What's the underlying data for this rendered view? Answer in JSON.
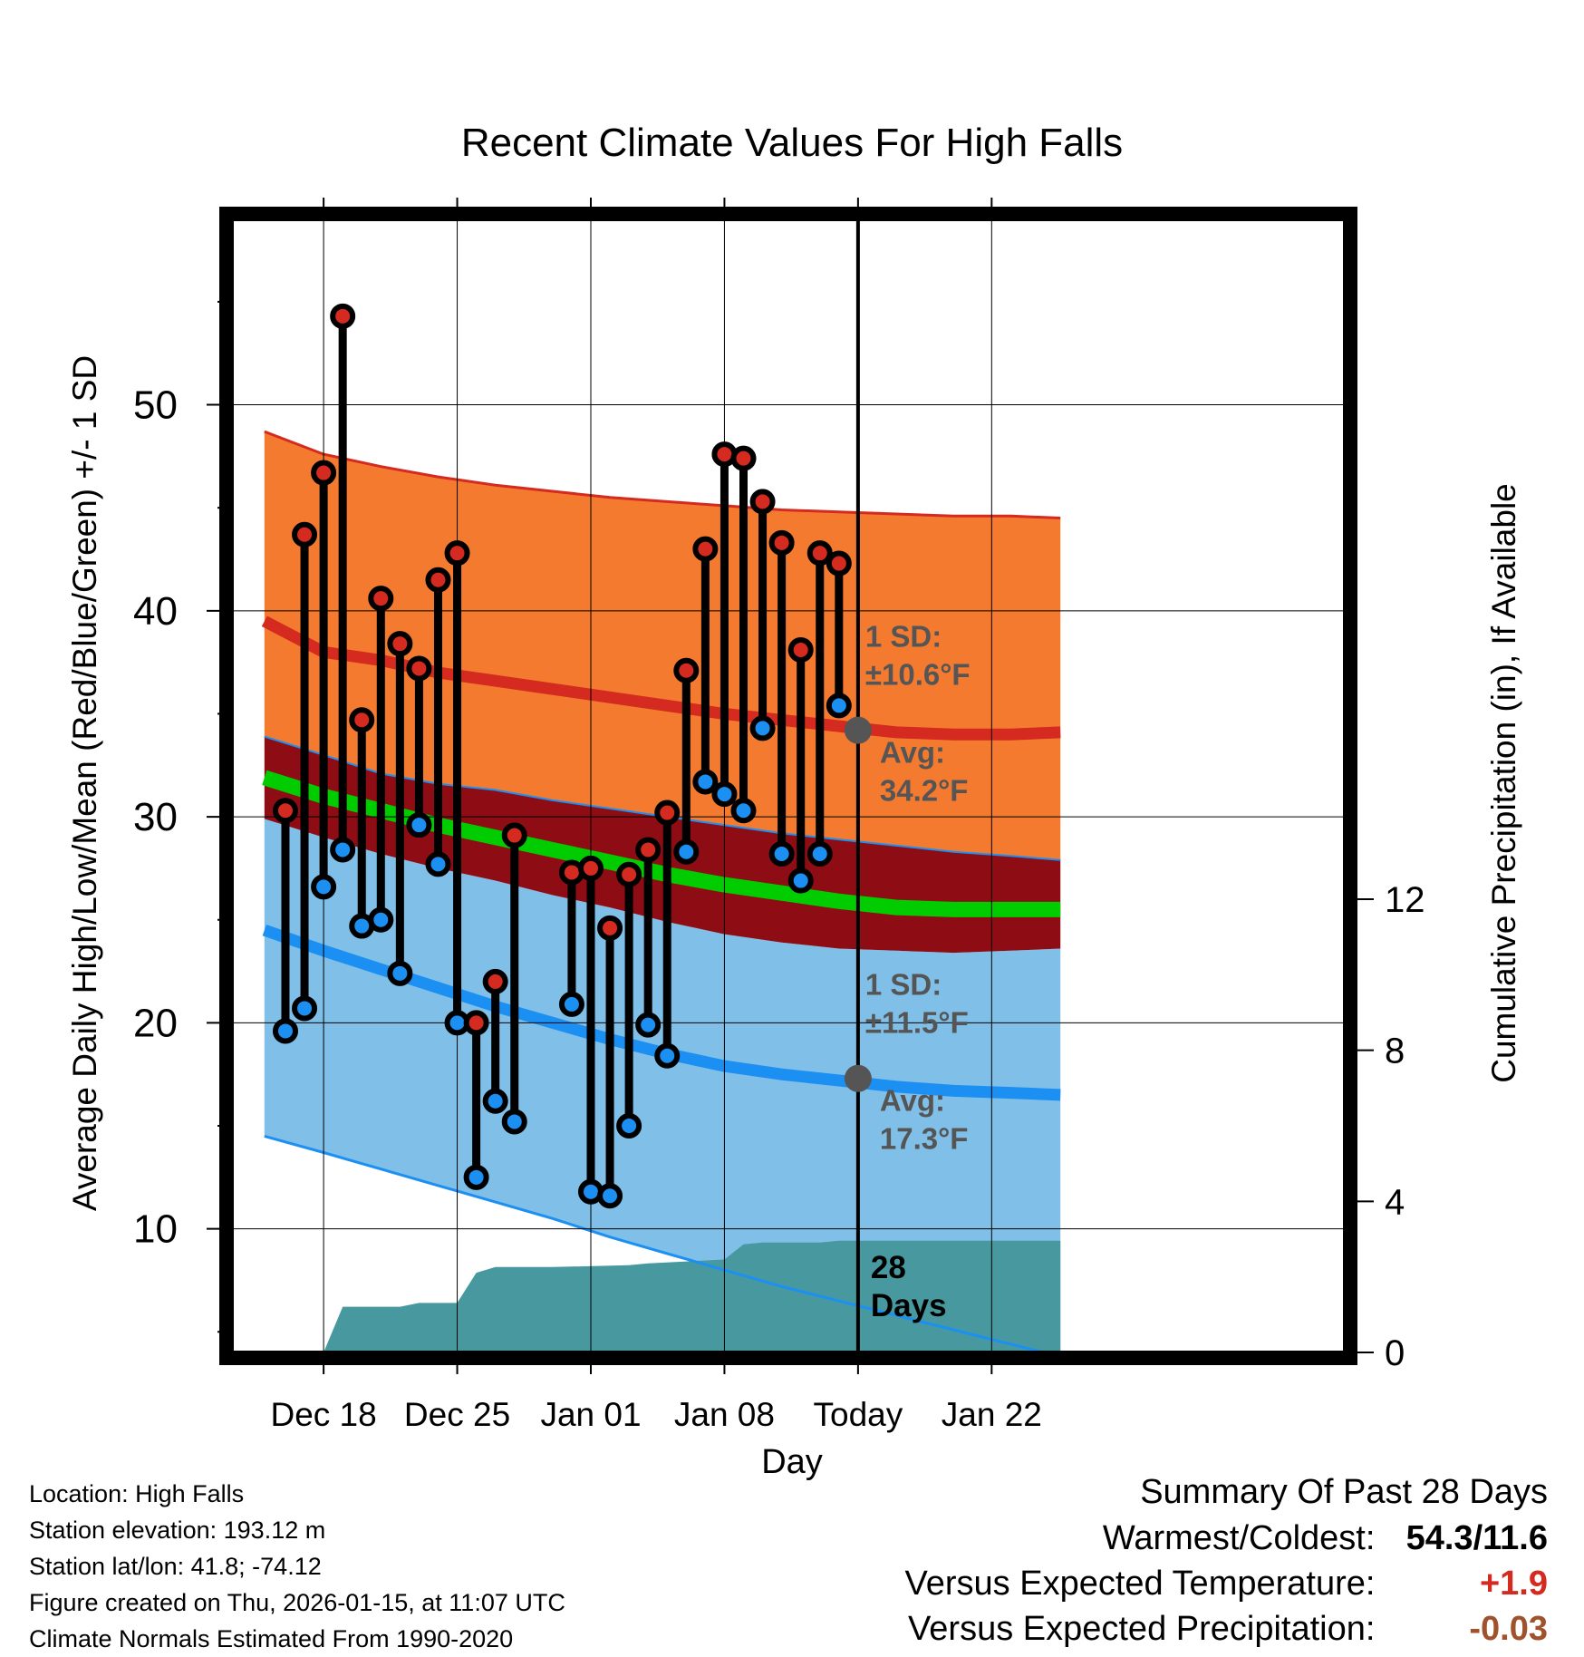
{
  "chart_data": {
    "type": "line",
    "title": "Recent Climate Values For High Falls",
    "xlabel": "Day",
    "ylabel": "Average Daily High/Low/Mean (Red/Blue/Green) +/- 1 SD",
    "y2label": "Cumulative Precipitation (in), If Available",
    "xlim": [
      -4.8,
      53.5
    ],
    "ylim": [
      4,
      59
    ],
    "y2lim": [
      0,
      30
    ],
    "xticks": [
      {
        "x": 0,
        "label": "Dec 18"
      },
      {
        "x": 7,
        "label": "Dec 25"
      },
      {
        "x": 14,
        "label": "Jan 01"
      },
      {
        "x": 21,
        "label": "Jan 08"
      },
      {
        "x": 28,
        "label": "Today"
      },
      {
        "x": 35,
        "label": "Jan 22"
      }
    ],
    "yticks": [
      10,
      20,
      30,
      40,
      50
    ],
    "y2ticks": [
      0,
      4,
      8,
      12
    ],
    "today_x": 28,
    "days": [
      -2,
      -1,
      0,
      1,
      2,
      3,
      4,
      5,
      6,
      7,
      8,
      9,
      10,
      13,
      14,
      15,
      16,
      17,
      18,
      19,
      20,
      21,
      22,
      23,
      24,
      25,
      26,
      27
    ],
    "highs": [
      30.3,
      43.7,
      46.7,
      54.3,
      34.7,
      40.6,
      38.4,
      37.2,
      41.5,
      42.8,
      20.0,
      22.0,
      29.1,
      27.3,
      27.5,
      24.6,
      27.2,
      28.4,
      30.2,
      37.1,
      43.0,
      47.6,
      47.4,
      45.3,
      43.3,
      38.1,
      42.8,
      42.3
    ],
    "lows": [
      19.6,
      20.7,
      26.6,
      28.4,
      24.7,
      25.0,
      22.4,
      29.6,
      27.7,
      20.0,
      12.5,
      16.2,
      15.2,
      20.9,
      11.8,
      11.6,
      15.0,
      19.9,
      18.4,
      28.3,
      31.7,
      31.1,
      30.3,
      34.3,
      28.2,
      26.9,
      28.2,
      35.4
    ],
    "normals_x": [
      -3.1,
      0,
      3,
      6,
      9,
      12,
      15,
      18,
      21,
      24,
      27,
      30,
      33,
      36,
      38.6
    ],
    "normal_high": [
      39.5,
      38.0,
      37.6,
      37.0,
      36.6,
      36.2,
      35.8,
      35.4,
      35.0,
      34.7,
      34.4,
      34.1,
      34.0,
      34.0,
      34.1
    ],
    "normal_high_upper": [
      48.7,
      47.6,
      47.0,
      46.5,
      46.1,
      45.8,
      45.5,
      45.3,
      45.1,
      44.9,
      44.8,
      44.7,
      44.6,
      44.6,
      44.5
    ],
    "normal_high_lower": [
      33.9,
      33.0,
      32.1,
      31.6,
      31.3,
      30.8,
      30.4,
      30.0,
      29.6,
      29.2,
      28.9,
      28.6,
      28.3,
      28.1,
      27.9
    ],
    "normal_mean": [
      31.9,
      31.0,
      30.3,
      29.6,
      29.0,
      28.4,
      27.8,
      27.2,
      26.7,
      26.3,
      25.9,
      25.6,
      25.5,
      25.5,
      25.5
    ],
    "normal_low": [
      24.5,
      23.5,
      22.6,
      21.7,
      20.8,
      20.0,
      19.2,
      18.5,
      17.9,
      17.5,
      17.2,
      16.9,
      16.7,
      16.6,
      16.5
    ],
    "normal_low_upper": [
      29.9,
      29.0,
      28.2,
      27.5,
      26.9,
      26.2,
      25.6,
      24.9,
      24.3,
      23.9,
      23.6,
      23.5,
      23.4,
      23.5,
      23.6
    ],
    "normal_low_lower": [
      14.5,
      13.7,
      12.9,
      12.1,
      11.3,
      10.5,
      9.6,
      8.8,
      8.0,
      7.2,
      6.5,
      5.8,
      5.1,
      4.4,
      3.8
    ],
    "precip_x": [
      0,
      1,
      4,
      5,
      7,
      8,
      9,
      12,
      16,
      17,
      21,
      22,
      23,
      26,
      27,
      38.6
    ],
    "precip_cum": [
      0.0,
      1.21,
      1.21,
      1.31,
      1.31,
      2.11,
      2.26,
      2.26,
      2.31,
      2.36,
      2.46,
      2.86,
      2.91,
      2.91,
      2.96,
      2.96
    ],
    "high_annotation": {
      "label": "1 SD:",
      "sd": "±10.6°F",
      "avg_label": "Avg:",
      "avg": "34.2°F",
      "avg_value": 34.2
    },
    "low_annotation": {
      "label": "1 SD:",
      "sd": "±11.5°F",
      "avg_label": "Avg:",
      "avg": "17.3°F",
      "avg_value": 17.3
    },
    "period_label": [
      "28",
      "Days"
    ],
    "colors": {
      "high_band": "#f47a2f",
      "high_line": "#d42a1f",
      "overlap": "#8e0d14",
      "mean_line": "#00cc00",
      "low_band": "#7fbfe8",
      "low_line": "#1c8ff2",
      "precip": "#47999f",
      "high_marker": "#d42a1f",
      "low_marker": "#1c8ff2",
      "annotation": "#555555"
    }
  },
  "info": {
    "location": "Location: High Falls",
    "elevation": "Station elevation: 193.12 m",
    "latlon": "Station lat/lon: 41.8; -74.12",
    "created": "Figure created on Thu, 2026-01-15, at 11:07 UTC",
    "normals": "Climate Normals Estimated From 1990-2020"
  },
  "summary": {
    "title": "Summary Of Past 28 Days",
    "extremes_label": "Warmest/Coldest:",
    "extremes_value": "54.3/11.6",
    "temp_label": "Versus Expected Temperature:",
    "temp_value": "+1.9",
    "temp_color": "#d42a1f",
    "precip_label": "Versus Expected Precipitation:",
    "precip_value": "-0.03",
    "precip_color": "#a0522d"
  }
}
